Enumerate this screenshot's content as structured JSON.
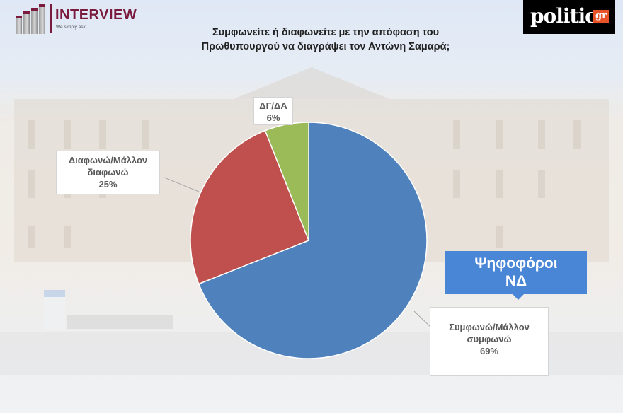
{
  "header": {
    "left_logo": {
      "brand": "INTERVIEW",
      "tagline": "We simply ask!"
    },
    "right_logo": {
      "text": "politic",
      "suffix": "gr"
    },
    "title_line1": "Συμφωνείτε ή διαφωνείτε με την απόφαση του",
    "title_line2": "Πρωθυπουργού να διαγράψει τον Αντώνη Σαμαρά;"
  },
  "badge": {
    "line1": "Ψηφοφόροι",
    "line2": "ΝΔ"
  },
  "labels": {
    "agree": {
      "line1": "Συμφωνώ/Μάλλον",
      "line2": "συμφωνώ",
      "value": "69%"
    },
    "disagree": {
      "line1": "Διαφωνώ/Μάλλον",
      "line2": "διαφωνώ",
      "value": "25%"
    },
    "dk": {
      "line1": "ΔΓ/ΔΑ",
      "value": "6%"
    }
  },
  "colors": {
    "agree": "#4f81bd",
    "disagree": "#c0504d",
    "dk": "#9bbb59",
    "badge": "#4a86d6"
  },
  "chart_data": {
    "type": "pie",
    "title": "Συμφωνείτε ή διαφωνείτε με την απόφαση του Πρωθυπουργού να διαγράψει τον Αντώνη Σαμαρά;",
    "subtitle": "Ψηφοφόροι ΝΔ",
    "categories": [
      "Συμφωνώ/Μάλλον συμφωνώ",
      "Διαφωνώ/Μάλλον διαφωνώ",
      "ΔΓ/ΔΑ"
    ],
    "values": [
      69,
      25,
      6
    ],
    "unit": "%",
    "colors": [
      "#4f81bd",
      "#c0504d",
      "#9bbb59"
    ],
    "start_angle": "12 o'clock, clockwise"
  }
}
